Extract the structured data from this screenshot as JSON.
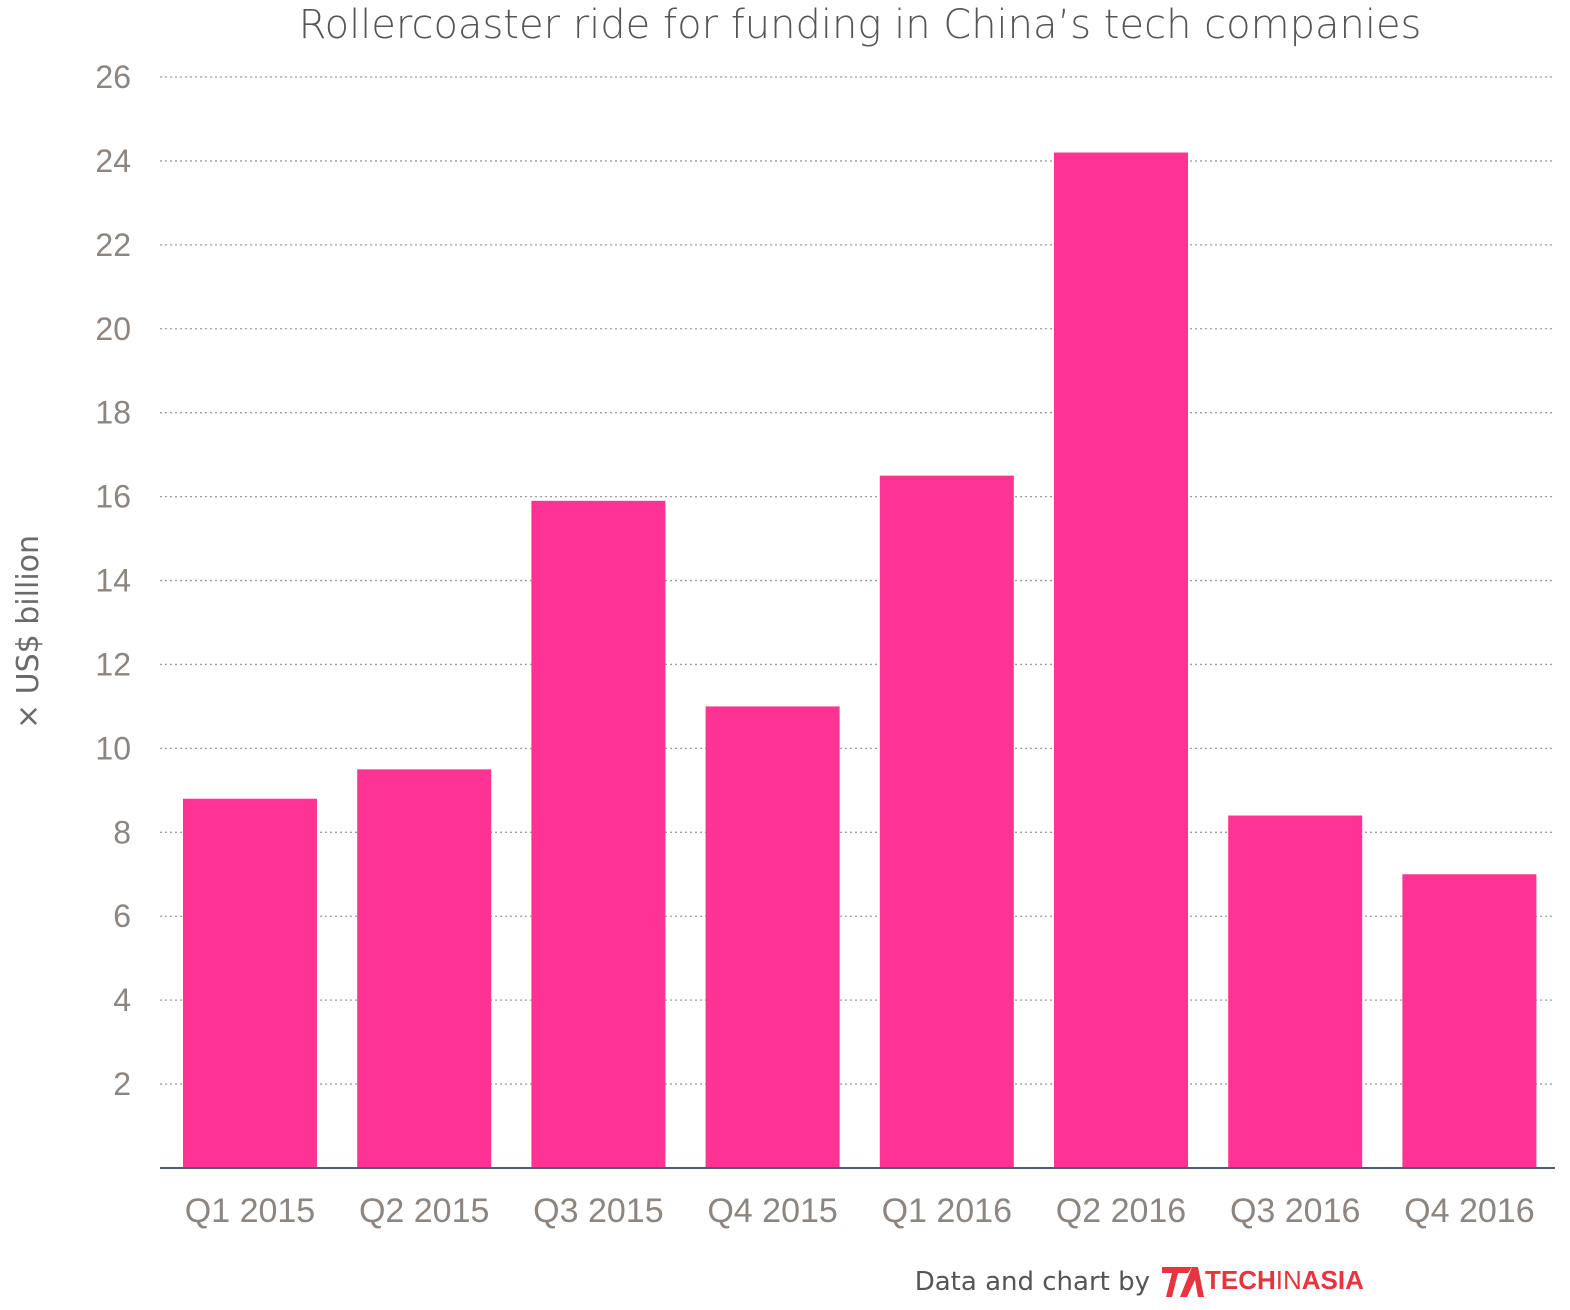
{
  "chart_data": {
    "type": "bar",
    "title": "Rollercoaster ride for funding in China’s tech companies",
    "ylabel": "× US$ billion",
    "xlabel": "",
    "categories": [
      "Q1 2015",
      "Q2 2015",
      "Q3 2015",
      "Q4 2015",
      "Q1 2016",
      "Q2 2016",
      "Q3 2016",
      "Q4 2016"
    ],
    "values": [
      8.8,
      9.5,
      15.9,
      11.0,
      16.5,
      24.2,
      8.4,
      7.0
    ],
    "ylim": [
      0,
      26
    ],
    "yticks": [
      2,
      4,
      6,
      8,
      10,
      12,
      14,
      16,
      18,
      20,
      22,
      24,
      26
    ],
    "grid": "horizontal dotted",
    "bar_color": "#ff3391",
    "gridline_color": "#9e9e9e",
    "baseline_color": "#4a5d7e",
    "tick_color": "#8c8580"
  },
  "credit": {
    "text": "Data and chart by",
    "logo_bold": "TECH",
    "logo_thin": "IN",
    "logo_bold2": "ASIA",
    "logo_color": "#e8343e"
  }
}
